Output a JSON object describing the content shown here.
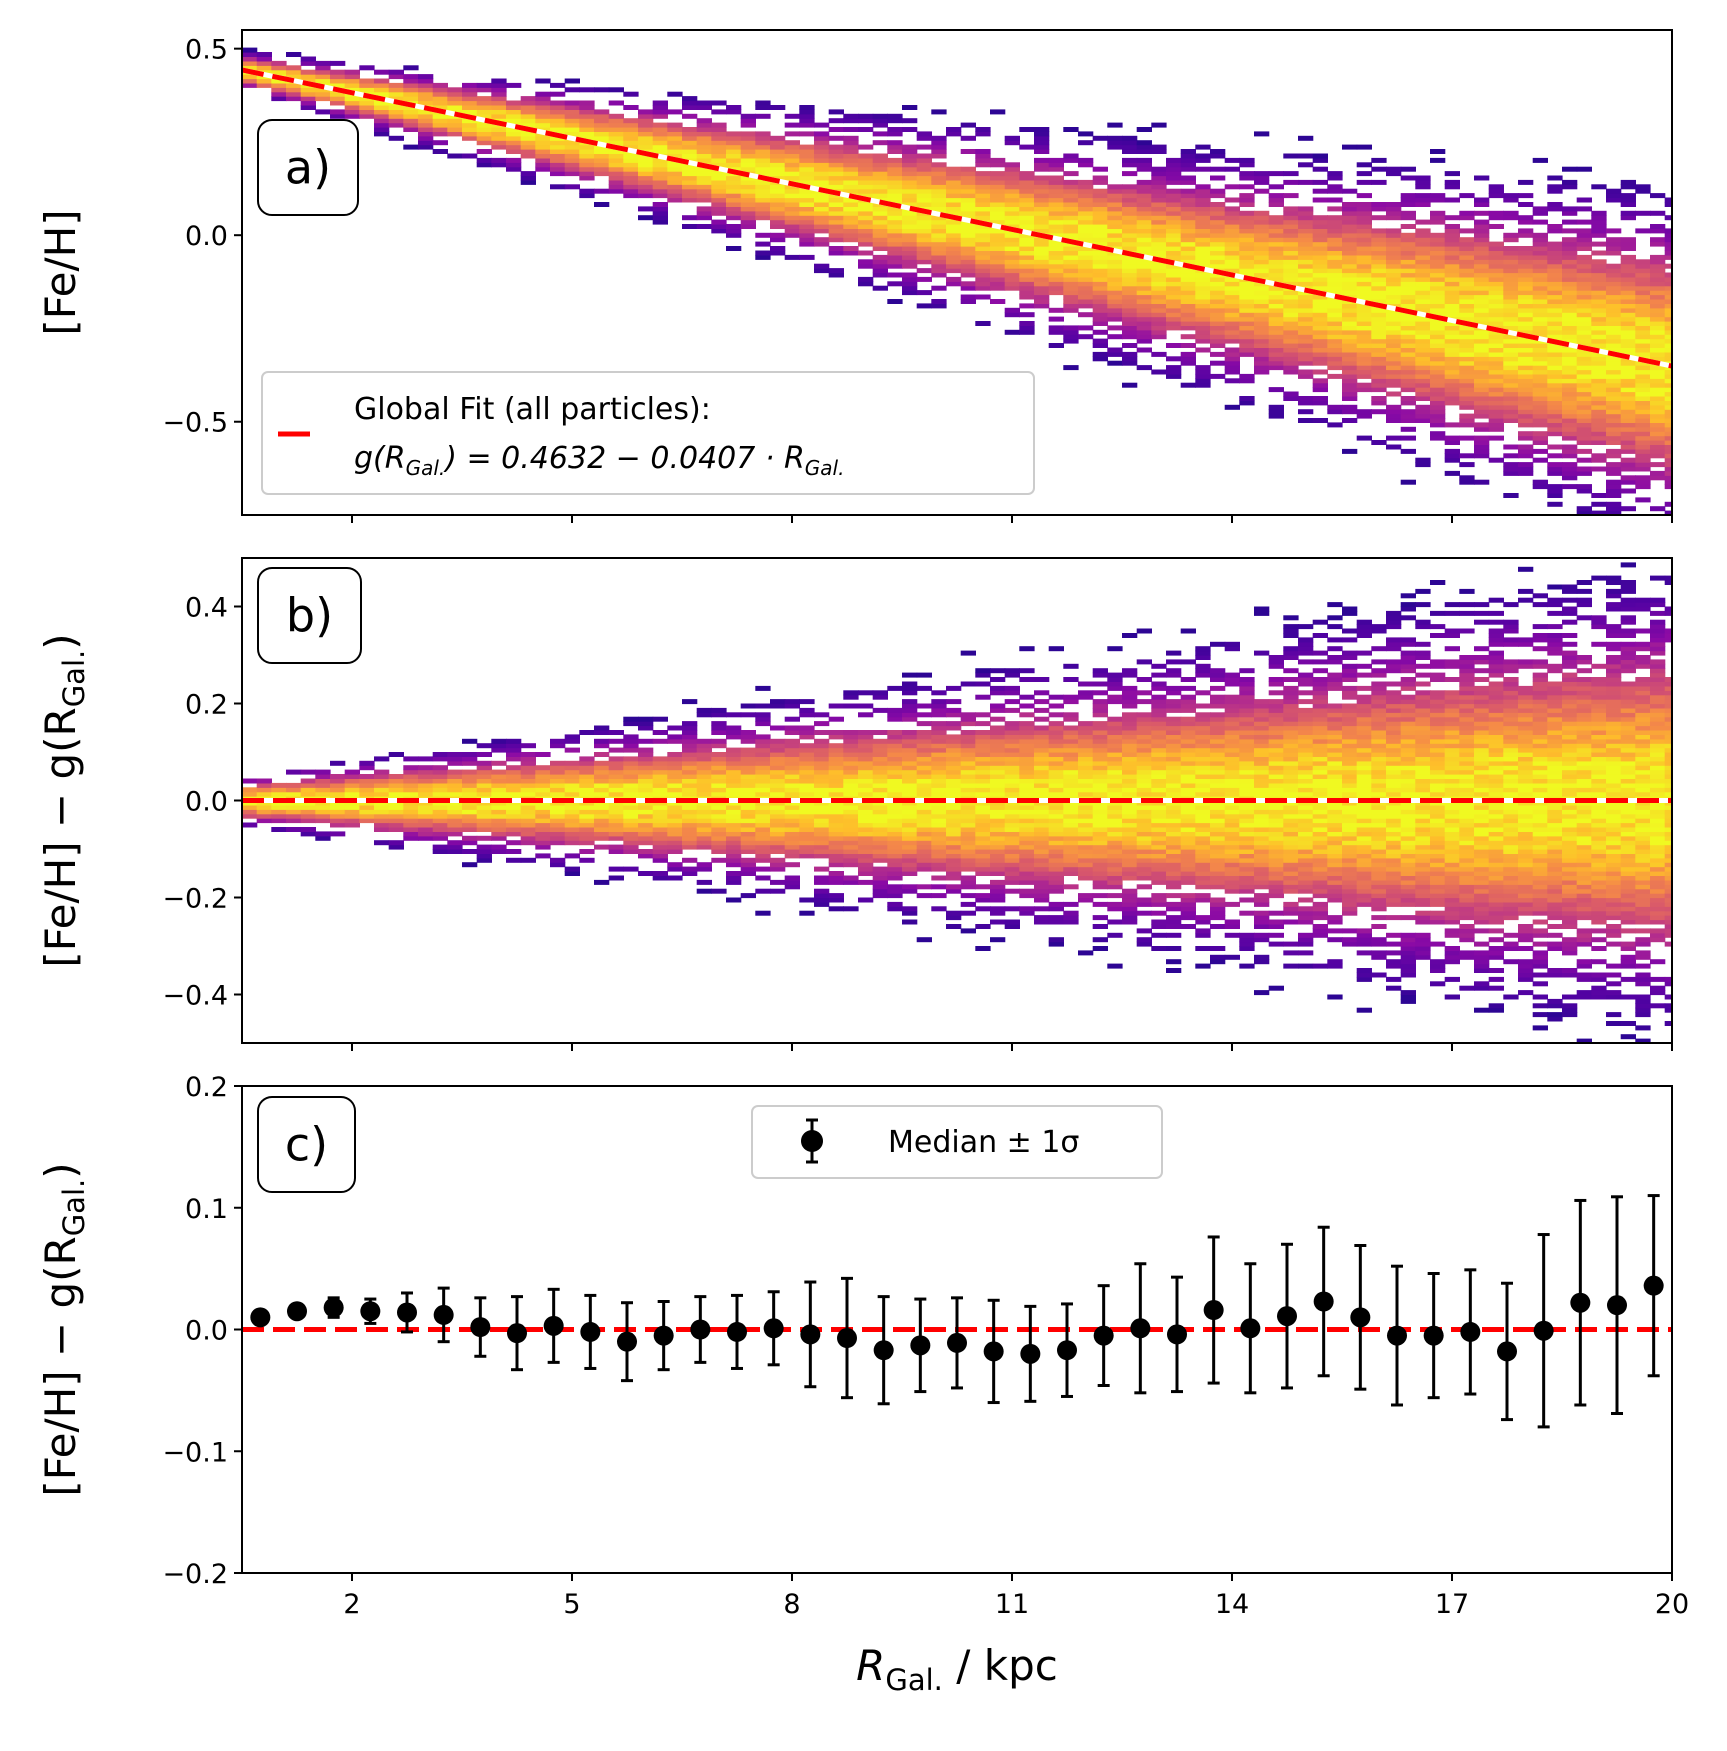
{
  "colors": {
    "fit_line": "#ff0000",
    "fit_line_under": "#ffffff",
    "points": "#000000",
    "colormap": "plasma"
  },
  "chart_data": [
    {
      "panel": "a)",
      "type": "heatmap",
      "xlim": [
        0.5,
        20
      ],
      "ylim": [
        -0.75,
        0.55
      ],
      "xticks": [
        "2",
        "5",
        "8",
        "11",
        "14",
        "17",
        "20"
      ],
      "yticks": [
        "0.5",
        "0.0",
        "−0.5"
      ],
      "ylabel": "[Fe/H]",
      "density_model": {
        "center": {
          "intercept": 0.4632,
          "slope": -0.0407
        },
        "core_halfwidth_x": [
          0.5,
          6,
          11,
          14,
          17,
          20
        ],
        "core_halfwidth_y": [
          0.02,
          0.06,
          0.1,
          0.12,
          0.15,
          0.17
        ]
      },
      "fit_line": {
        "intercept": 0.4632,
        "slope": -0.0407
      },
      "legend": {
        "placement": "lower-left",
        "line1": "Global Fit (all particles):",
        "line2_parts": [
          "g(R",
          "Gal.",
          ") = 0.4632 − 0.0407 · R",
          "Gal."
        ]
      }
    },
    {
      "panel": "b)",
      "type": "heatmap",
      "xlim": [
        0.5,
        20
      ],
      "ylim": [
        -0.5,
        0.5
      ],
      "xticks": [
        "2",
        "5",
        "8",
        "11",
        "14",
        "17",
        "20"
      ],
      "yticks": [
        "0.4",
        "0.2",
        "0.0",
        "−0.2",
        "−0.4"
      ],
      "ylabel_parts": [
        "[Fe/H] − g(R",
        "Gal.",
        ")"
      ],
      "density_model": {
        "center": {
          "intercept": 0,
          "slope": 0
        },
        "core_halfwidth_x": [
          0.5,
          6,
          11,
          14,
          17,
          20
        ],
        "core_halfwidth_y": [
          0.02,
          0.06,
          0.1,
          0.12,
          0.15,
          0.17
        ]
      },
      "fit_line": {
        "intercept": 0,
        "slope": 0
      }
    },
    {
      "panel": "c)",
      "type": "scatter",
      "xlim": [
        0.5,
        20
      ],
      "ylim": [
        -0.2,
        0.2
      ],
      "xticks": [
        "2",
        "5",
        "8",
        "11",
        "14",
        "17",
        "20"
      ],
      "yticks": [
        "0.2",
        "0.1",
        "0.0",
        "−0.1",
        "−0.2"
      ],
      "xlabel_parts": [
        "R",
        "Gal.",
        " / kpc"
      ],
      "ylabel_parts": [
        "[Fe/H] − g(R",
        "Gal.",
        ")"
      ],
      "legend": {
        "placement": "top-center",
        "label": "Median ± 1σ"
      },
      "reference_line": 0,
      "series": [
        {
          "x": [
            0.75,
            1.25,
            1.75,
            2.25,
            2.75,
            3.25,
            3.75,
            4.25,
            4.75,
            5.25,
            5.75,
            6.25,
            6.75,
            7.25,
            7.75,
            8.25,
            8.75,
            9.25,
            9.75,
            10.25,
            10.75,
            11.25,
            11.75,
            12.25,
            12.75,
            13.25,
            13.75,
            14.25,
            14.75,
            15.25,
            15.75,
            16.25,
            16.75,
            17.25,
            17.75,
            18.25,
            18.75,
            19.25,
            19.75
          ],
          "y": [
            0.01,
            0.015,
            0.018,
            0.015,
            0.014,
            0.012,
            0.002,
            -0.003,
            0.003,
            -0.002,
            -0.01,
            -0.005,
            0.0,
            -0.002,
            0.001,
            -0.004,
            -0.007,
            -0.017,
            -0.013,
            -0.011,
            -0.018,
            -0.02,
            -0.017,
            -0.005,
            0.001,
            -0.004,
            0.016,
            0.001,
            0.011,
            0.023,
            0.01,
            -0.005,
            -0.005,
            -0.002,
            -0.018,
            -0.001,
            0.022,
            0.02,
            0.036
          ],
          "err": [
            0.005,
            0.005,
            0.008,
            0.01,
            0.016,
            0.022,
            0.024,
            0.03,
            0.03,
            0.03,
            0.032,
            0.028,
            0.027,
            0.03,
            0.03,
            0.043,
            0.049,
            0.044,
            0.038,
            0.037,
            0.042,
            0.039,
            0.038,
            0.041,
            0.053,
            0.047,
            0.06,
            0.053,
            0.059,
            0.061,
            0.059,
            0.057,
            0.051,
            0.051,
            0.056,
            0.079,
            0.084,
            0.089,
            0.074
          ]
        }
      ]
    }
  ]
}
